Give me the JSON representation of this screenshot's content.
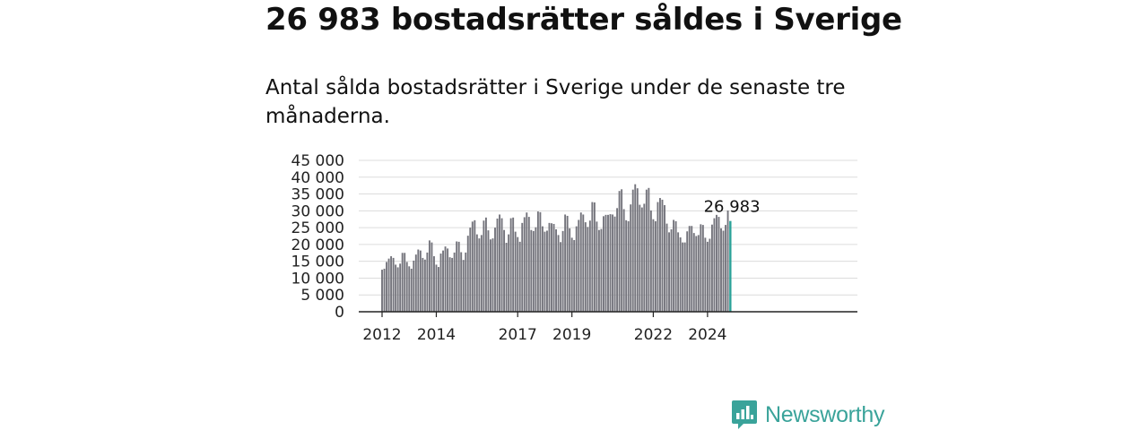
{
  "header": {
    "title": "26 983 bostadsrätter såldes i Sverige",
    "subtitle": "Antal sålda bostadsrätter i Sverige under de senaste tre månaderna."
  },
  "brand": {
    "name": "Newsworthy",
    "icon": "newsworthy-logo-icon",
    "color": "#3aa39a"
  },
  "chart_data": {
    "type": "bar",
    "title": "",
    "xlabel": "",
    "ylabel": "",
    "ylim": [
      0,
      45000
    ],
    "yticks": [
      0,
      5000,
      10000,
      15000,
      20000,
      25000,
      30000,
      35000,
      40000,
      45000
    ],
    "ytick_labels": [
      "0",
      "5 000",
      "10 000",
      "15 000",
      "20 000",
      "25 000",
      "30 000",
      "35 000",
      "40 000",
      "45 000"
    ],
    "xtick_labels": [
      {
        "label": "2012",
        "index": 0
      },
      {
        "label": "2014",
        "index": 24
      },
      {
        "label": "2017",
        "index": 60
      },
      {
        "label": "2019",
        "index": 84
      },
      {
        "label": "2022",
        "index": 120
      },
      {
        "label": "2024",
        "index": 144
      }
    ],
    "grid": true,
    "bar_color": "#74747c",
    "highlight_color": "#2aa198",
    "highlight_index": 154,
    "highlight_label": "26 983",
    "series": [
      {
        "values": [
          12500,
          12800,
          14800,
          15800,
          16500,
          16000,
          14000,
          13200,
          14300,
          17500,
          17500,
          14800,
          13500,
          12800,
          15200,
          17000,
          18500,
          18200,
          16000,
          15500,
          17600,
          21200,
          20600,
          16500,
          14000,
          13300,
          17300,
          18200,
          19400,
          18800,
          16200,
          16000,
          17600,
          20900,
          20800,
          17700,
          15400,
          17600,
          22600,
          25000,
          26800,
          27200,
          23000,
          21800,
          22800,
          27100,
          28000,
          24200,
          21500,
          21800,
          25000,
          27700,
          28900,
          27800,
          24300,
          20500,
          23000,
          27800,
          28000,
          23800,
          22200,
          20800,
          26400,
          28100,
          29500,
          28200,
          24300,
          24000,
          25100,
          29800,
          29600,
          25400,
          23800,
          24100,
          26400,
          26300,
          26100,
          24500,
          22800,
          20700,
          24000,
          28900,
          28500,
          24800,
          22000,
          21300,
          25400,
          27300,
          29500,
          28900,
          26600,
          25200,
          27100,
          32600,
          32500,
          26800,
          24300,
          24600,
          28400,
          28800,
          28800,
          29000,
          28900,
          28300,
          30800,
          35900,
          36400,
          30500,
          27200,
          26900,
          31900,
          36300,
          37900,
          36700,
          31800,
          31000,
          32100,
          36300,
          36800,
          30100,
          27500,
          26900,
          32600,
          33800,
          33300,
          31700,
          26200,
          23600,
          24500,
          27300,
          26900,
          23600,
          22100,
          20600,
          20600,
          23900,
          25500,
          25500,
          23400,
          22500,
          22800,
          26000,
          25800,
          22000,
          20800,
          21700,
          25900,
          27800,
          28800,
          28200,
          24800,
          24100,
          25800,
          30100,
          26983
        ]
      }
    ]
  }
}
